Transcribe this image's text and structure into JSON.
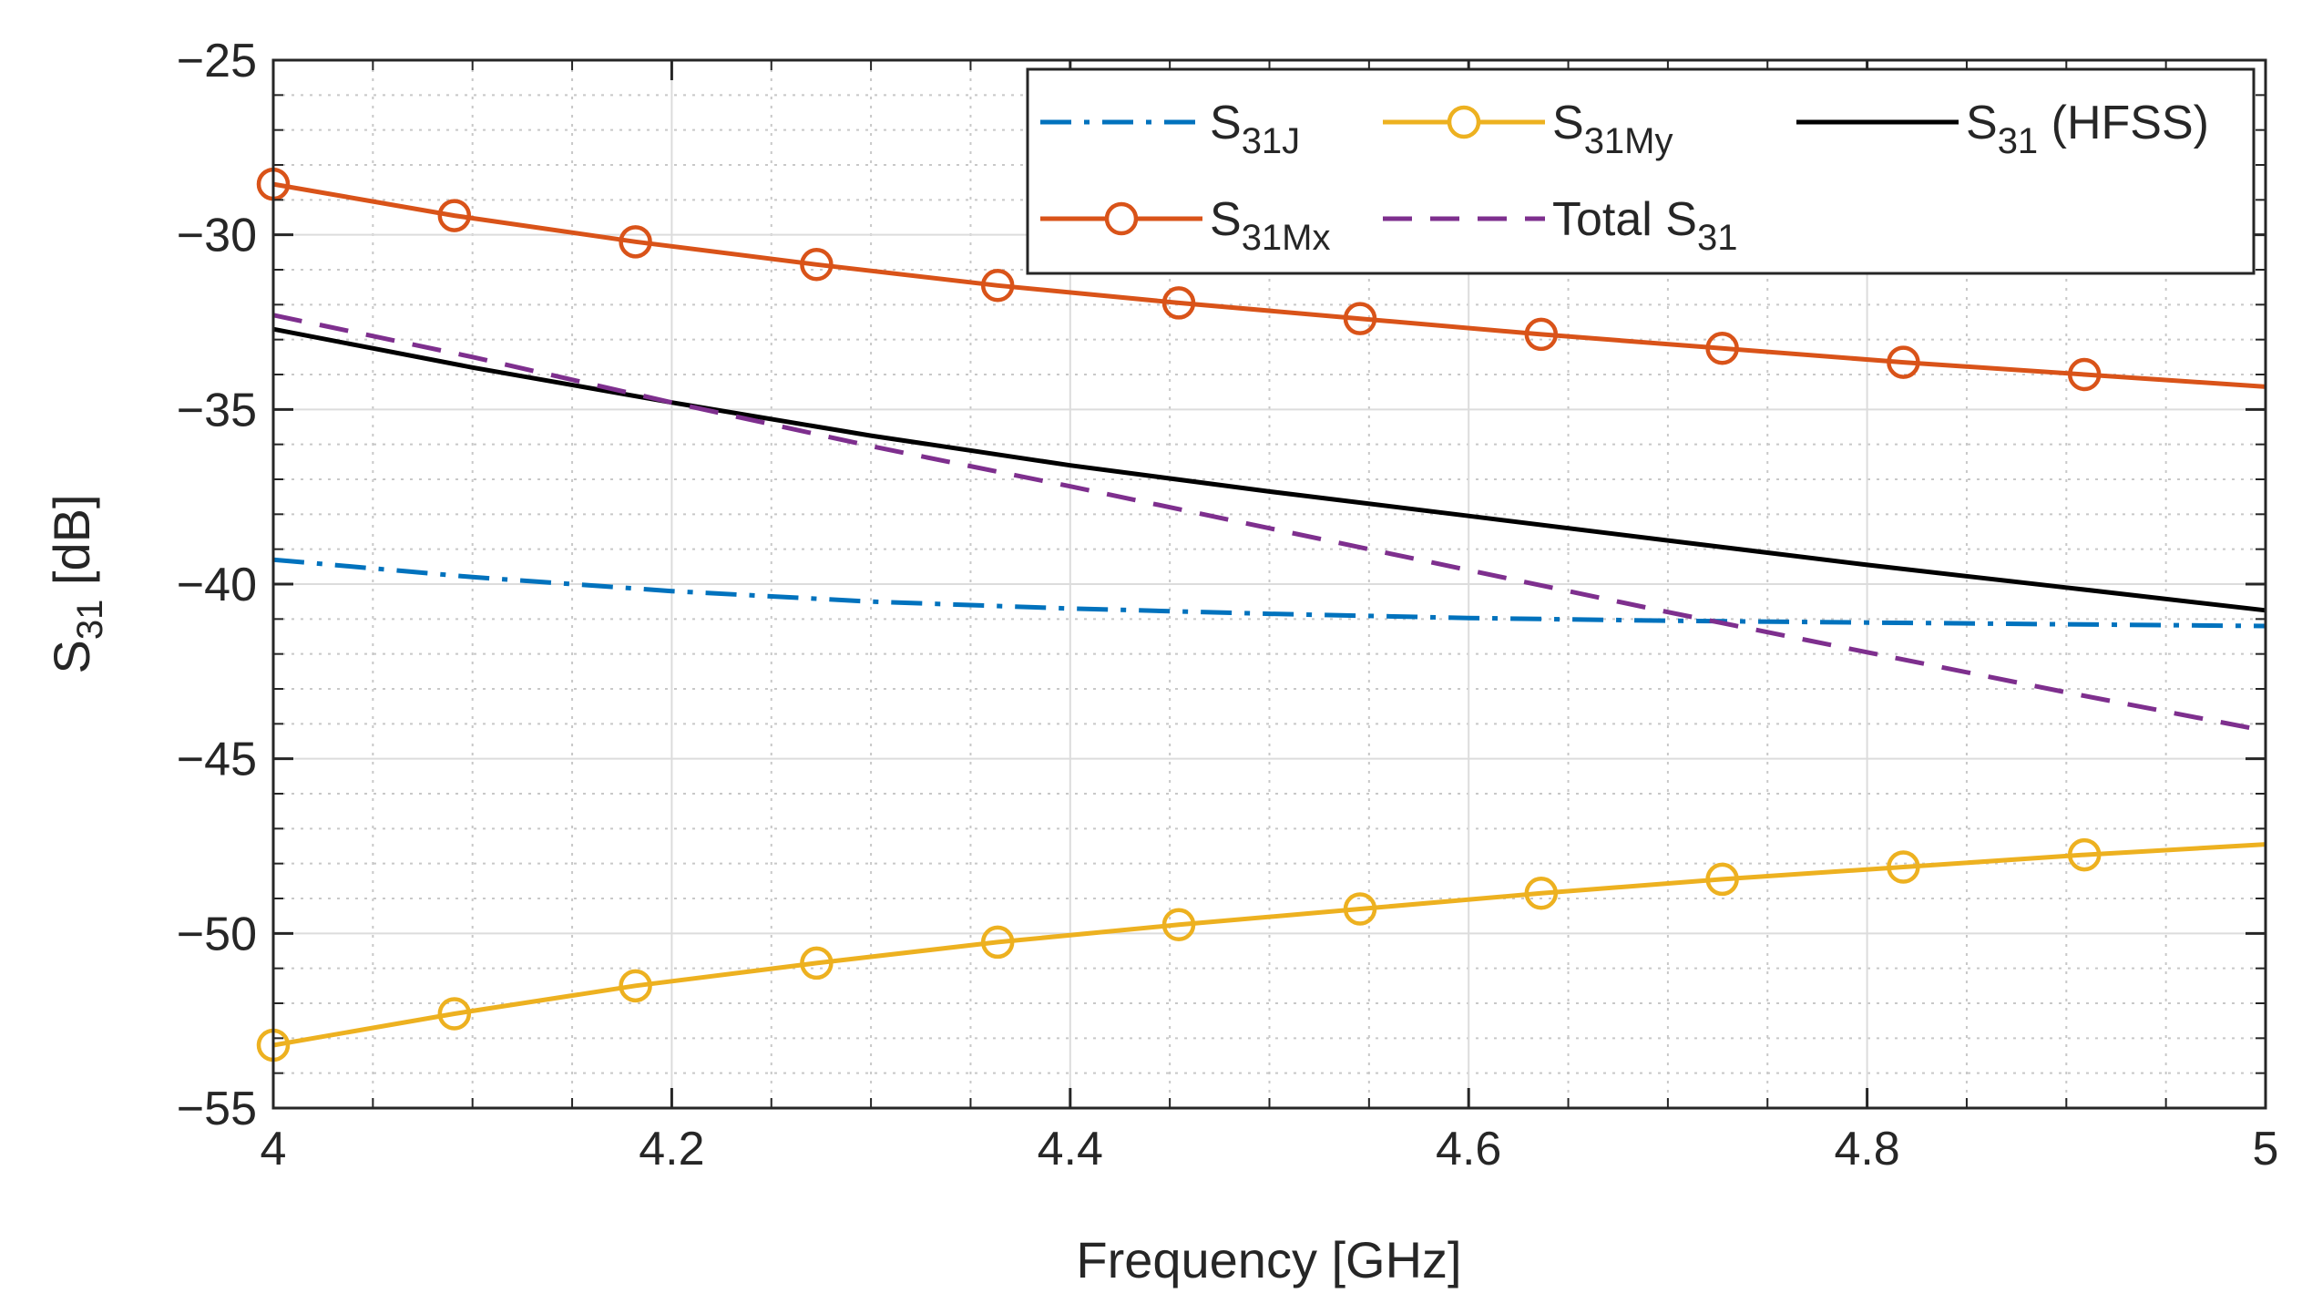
{
  "chart_data": {
    "type": "line",
    "title": "",
    "xlabel": "Frequency [GHz]",
    "ylabel": {
      "main": "S",
      "sub": "31",
      "rest": " [dB]"
    },
    "xlim": [
      4,
      5
    ],
    "ylim": [
      -55,
      -25
    ],
    "xticks": [
      4,
      4.2,
      4.4,
      4.6,
      4.8,
      5
    ],
    "xtick_labels": [
      "4",
      "4.2",
      "4.4",
      "4.6",
      "4.8",
      "5"
    ],
    "yticks": [
      -55,
      -50,
      -45,
      -40,
      -35,
      -30,
      -25
    ],
    "ytick_labels": [
      "−55",
      "−50",
      "−45",
      "−40",
      "−35",
      "−30",
      "−25"
    ],
    "grid": true,
    "minor_grid": true,
    "legend_position": "top-right",
    "series": [
      {
        "name": "S31J",
        "label_main": "S",
        "label_sub": "31J",
        "label_rest": "",
        "color": "#0072BD",
        "dash": "dashdot",
        "marker": "none",
        "x": [
          4.0,
          4.1,
          4.2,
          4.3,
          4.4,
          4.5,
          4.6,
          4.7,
          4.8,
          4.9,
          5.0
        ],
        "values": [
          -39.3,
          -39.8,
          -40.2,
          -40.5,
          -40.7,
          -40.85,
          -40.97,
          -41.05,
          -41.1,
          -41.15,
          -41.2
        ]
      },
      {
        "name": "S31My",
        "label_main": "S",
        "label_sub": "31My",
        "label_rest": "",
        "color": "#EDB120",
        "dash": "solid",
        "marker": "circle",
        "x": [
          4.0,
          4.0909,
          4.1818,
          4.2727,
          4.3636,
          4.4545,
          4.5455,
          4.6364,
          4.7273,
          4.8182,
          4.9091,
          5.0
        ],
        "values": [
          -53.2,
          -52.3,
          -51.5,
          -50.85,
          -50.25,
          -49.75,
          -49.3,
          -48.85,
          -48.45,
          -48.1,
          -47.75,
          -47.45
        ],
        "marker_x": [
          4.0,
          4.0909,
          4.1818,
          4.2727,
          4.3636,
          4.4545,
          4.5455,
          4.6364,
          4.7273,
          4.8182,
          4.9091
        ]
      },
      {
        "name": "S31 (HFSS)",
        "label_main": "S",
        "label_sub": "31",
        "label_rest": " (HFSS)",
        "color": "#000000",
        "dash": "solid",
        "marker": "none",
        "x": [
          4.0,
          4.1,
          4.2,
          4.3,
          4.4,
          4.5,
          4.6,
          4.7,
          4.8,
          4.9,
          5.0
        ],
        "values": [
          -32.7,
          -33.8,
          -34.8,
          -35.75,
          -36.6,
          -37.35,
          -38.05,
          -38.75,
          -39.45,
          -40.1,
          -40.75
        ]
      },
      {
        "name": "S31Mx",
        "label_main": "S",
        "label_sub": "31Mx",
        "label_rest": "",
        "color": "#D95319",
        "dash": "solid",
        "marker": "circle",
        "x": [
          4.0,
          4.0909,
          4.1818,
          4.2727,
          4.3636,
          4.4545,
          4.5455,
          4.6364,
          4.7273,
          4.8182,
          4.9091,
          5.0
        ],
        "values": [
          -28.55,
          -29.45,
          -30.2,
          -30.85,
          -31.45,
          -31.95,
          -32.4,
          -32.85,
          -33.25,
          -33.65,
          -34.0,
          -34.35
        ],
        "marker_x": [
          4.0,
          4.0909,
          4.1818,
          4.2727,
          4.3636,
          4.4545,
          4.5455,
          4.6364,
          4.7273,
          4.8182,
          4.9091
        ]
      },
      {
        "name": "Total S31",
        "label_main": "Total S",
        "label_sub": "31",
        "label_rest": "",
        "color": "#7E2F8E",
        "dash": "dashed",
        "marker": "none",
        "x": [
          4.0,
          4.1,
          4.2,
          4.3,
          4.4,
          4.5,
          4.6,
          4.7,
          4.8,
          4.9,
          5.0
        ],
        "values": [
          -32.3,
          -33.5,
          -34.8,
          -36.05,
          -37.2,
          -38.4,
          -39.6,
          -40.8,
          -41.95,
          -43.1,
          -44.2
        ]
      }
    ]
  }
}
